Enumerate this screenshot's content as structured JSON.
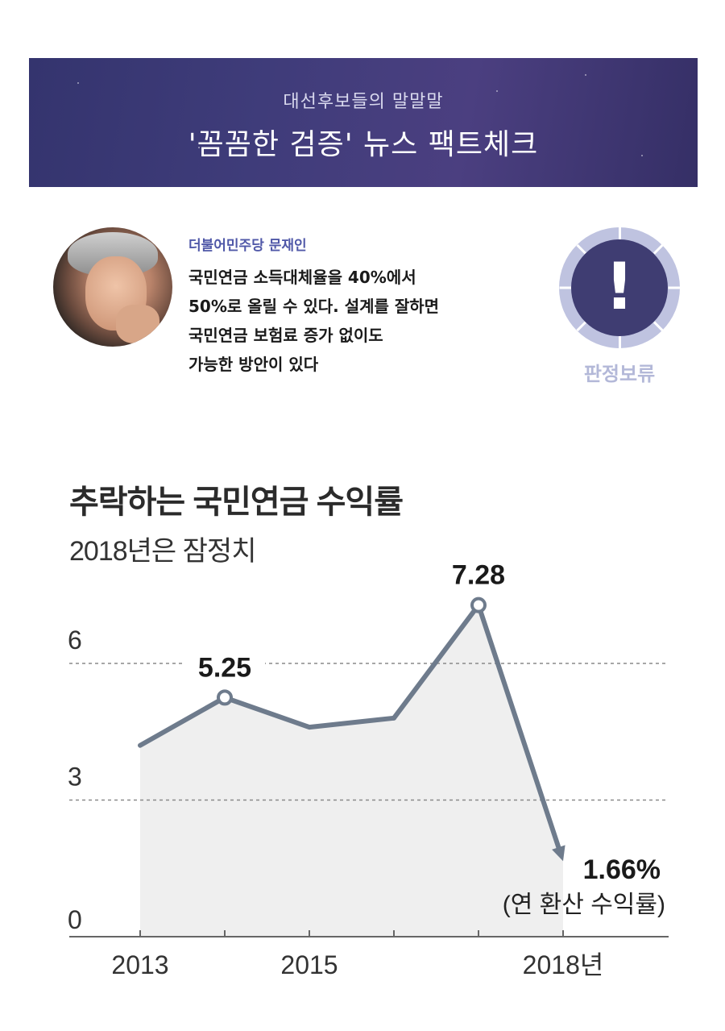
{
  "banner": {
    "subtitle": "대선후보들의 말말말",
    "title": "'꼼꼼한 검증' 뉴스 팩트체크"
  },
  "claim": {
    "speaker": "더불어민주당 문재인",
    "quote_lines": [
      "국민연금 소득대체율을 40%에서",
      "50%로 올릴 수 있다. 설계를 잘하면",
      "국민연금 보험료 증가 없이도",
      "가능한 방안이 있다"
    ]
  },
  "verdict": {
    "icon": "exclamation-icon",
    "label": "판정보류"
  },
  "colors": {
    "banner": "#3f3c7a",
    "accent": "#5058a8",
    "verdict_ring": "#bfc3e0",
    "verdict_inner": "#3f3d72",
    "line": "#6e7b8c",
    "area": "#efefef"
  },
  "chart_data": {
    "type": "line",
    "title": "추락하는 국민연금 수익률",
    "subtitle": "2018년은 잠정치",
    "x": [
      2013,
      2014,
      2015,
      2016,
      2017,
      2018
    ],
    "x_tick_labels": [
      {
        "x": 2013,
        "label": "2013"
      },
      {
        "x": 2015,
        "label": "2015"
      },
      {
        "x": 2018,
        "label": "2018년"
      }
    ],
    "series": [
      {
        "values": [
          4.2,
          5.25,
          4.6,
          4.8,
          7.28,
          1.66
        ]
      }
    ],
    "y_ticks": [
      0,
      3,
      6
    ],
    "ylim": [
      0,
      8
    ],
    "gridlines": [
      3,
      6
    ],
    "labels": [
      {
        "index": 1,
        "text": "5.25"
      },
      {
        "index": 4,
        "text": "7.28"
      },
      {
        "index": 5,
        "text": "1.66%"
      }
    ],
    "note": "(연 환산 수익률)"
  }
}
